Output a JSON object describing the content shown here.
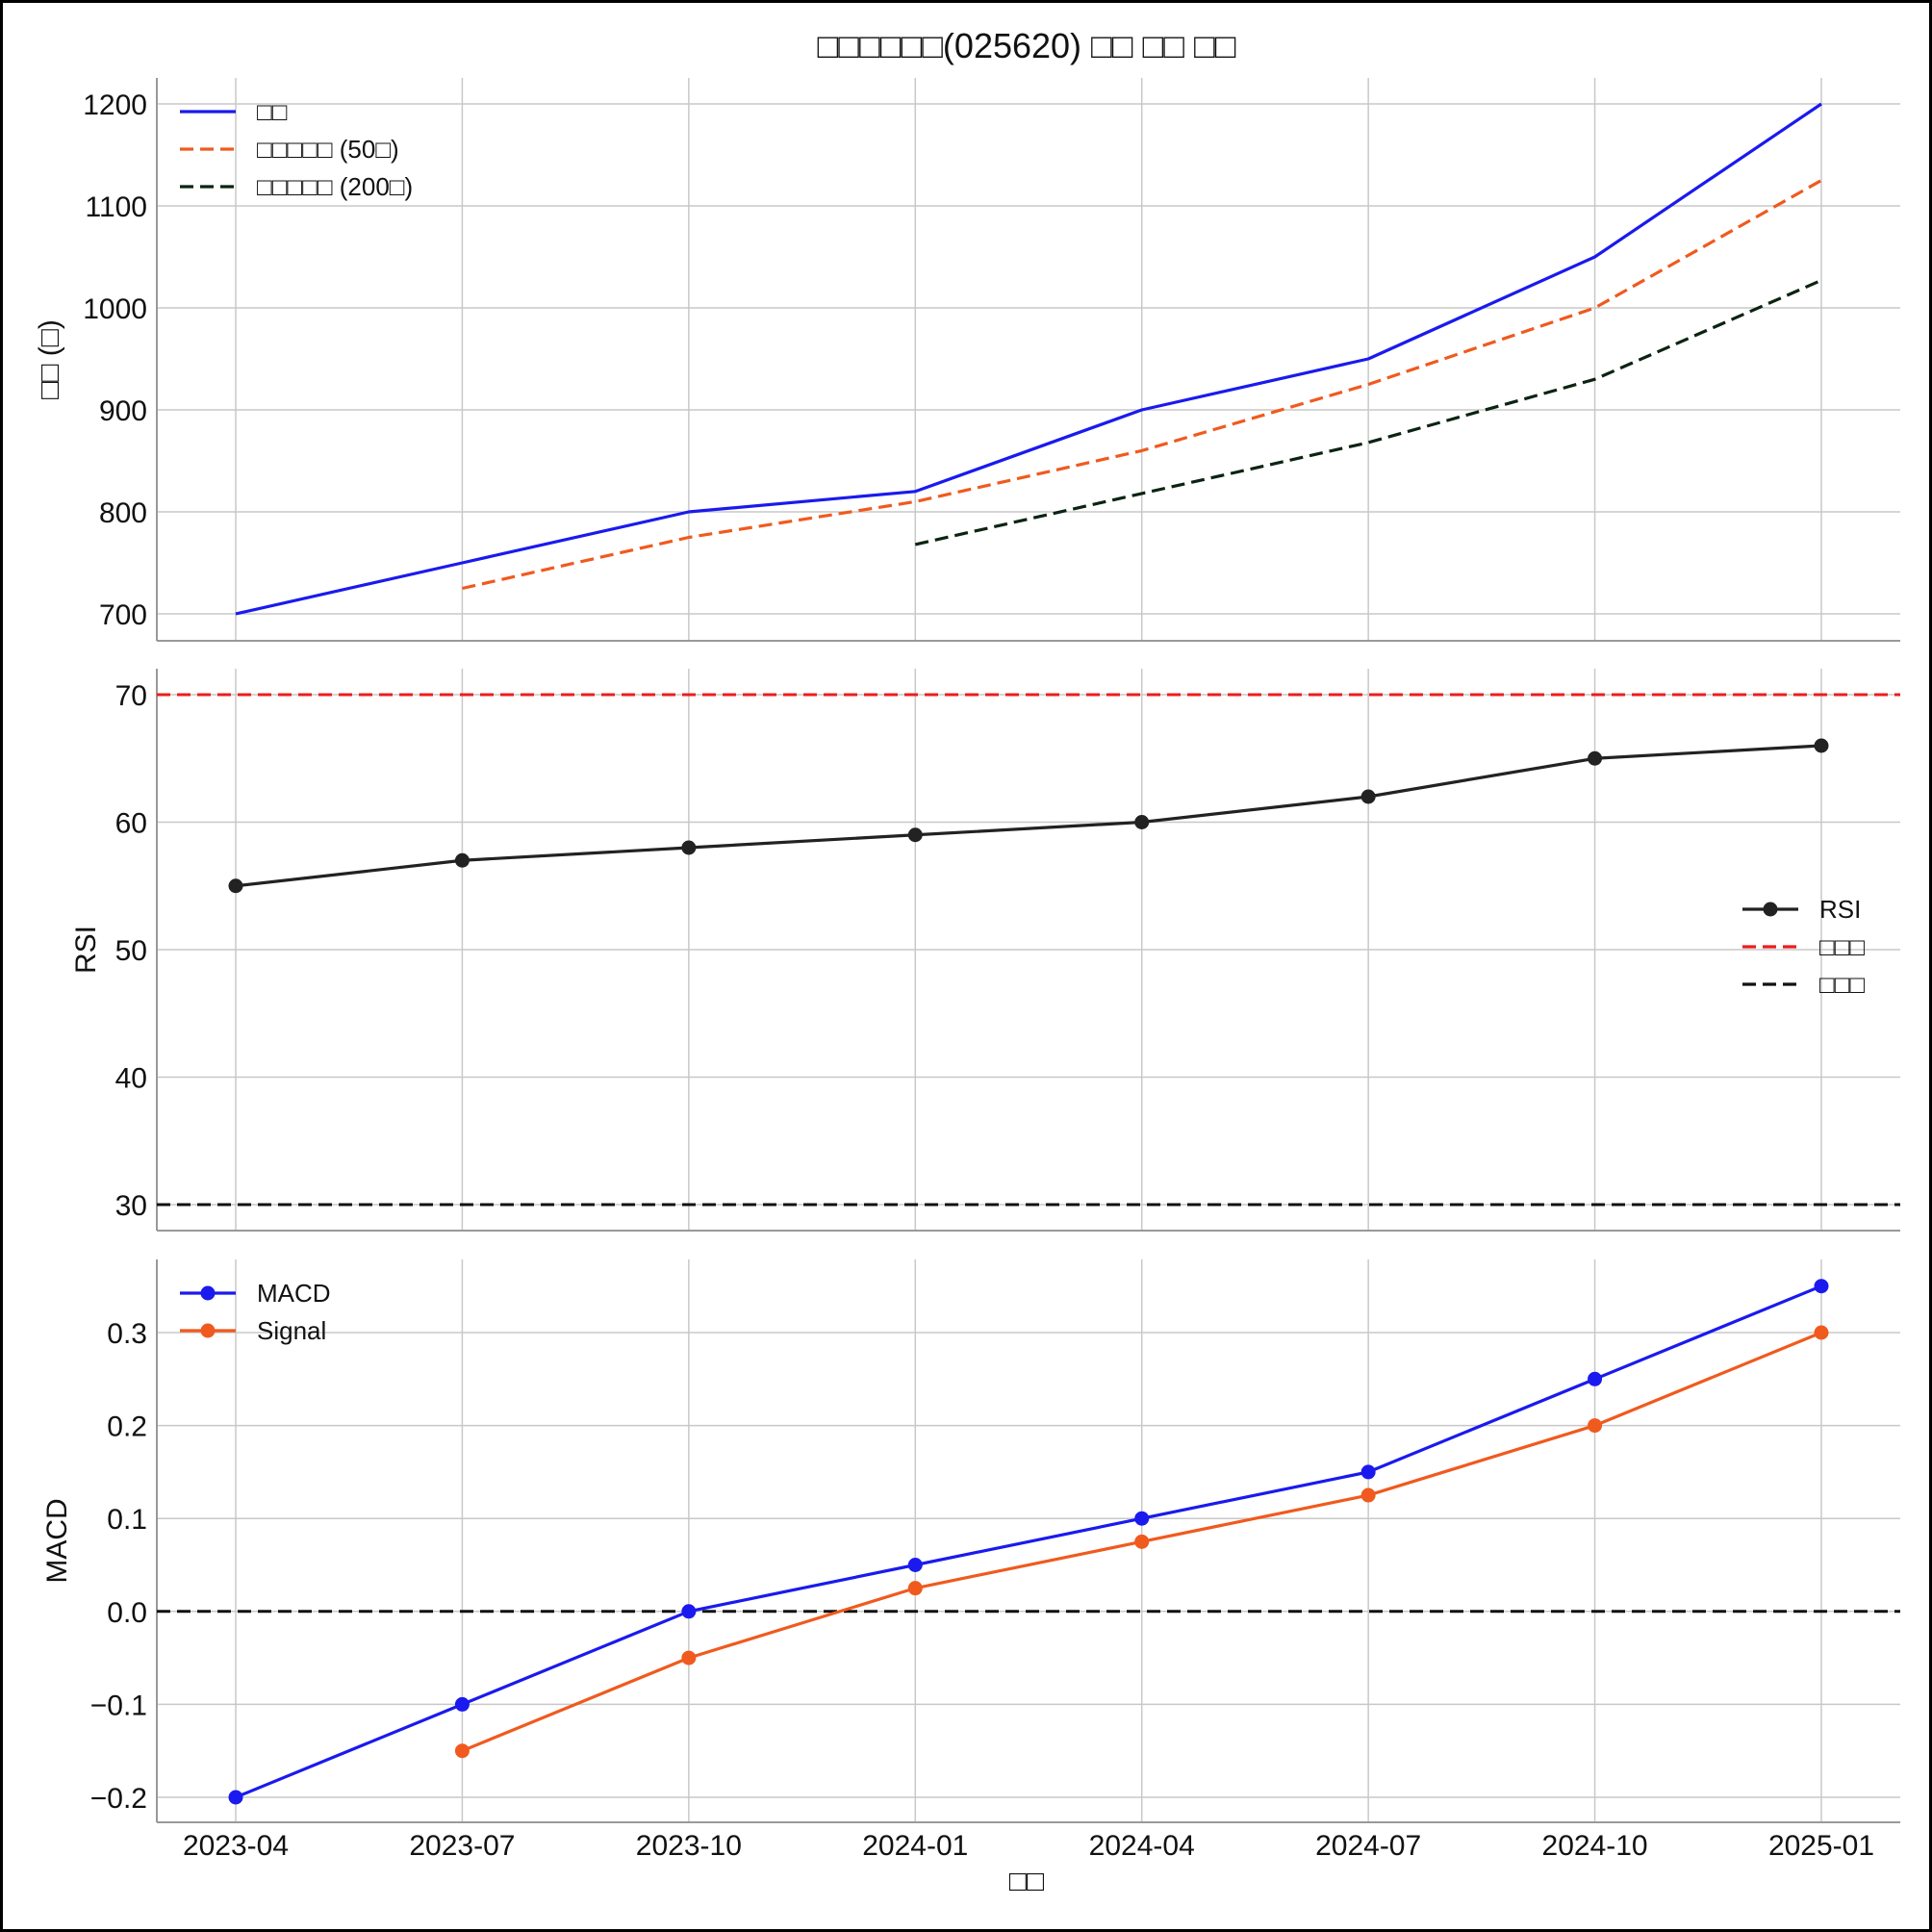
{
  "title": "□□□□□□(025620) □□ □□ □□",
  "x_dates": [
    "2023-04",
    "2023-07",
    "2023-10",
    "2024-01",
    "2024-04",
    "2024-07",
    "2024-10",
    "2025-01"
  ],
  "xlabel": "□□",
  "chart_data": [
    {
      "type": "line",
      "panel": "price",
      "ylabel": "□□ (□)",
      "ylim": [
        675,
        1225
      ],
      "yticks": [
        700,
        800,
        900,
        1000,
        1100,
        1200
      ],
      "grid": true,
      "legend_position": "top-left",
      "x": [
        "2023-04",
        "2023-07",
        "2023-10",
        "2024-01",
        "2024-04",
        "2024-07",
        "2024-10",
        "2025-01"
      ],
      "series": [
        {
          "name": "□□",
          "color": "#1a1aee",
          "style": "solid",
          "values": [
            700,
            750,
            800,
            820,
            900,
            950,
            1050,
            1200
          ]
        },
        {
          "name": "□□□□□ (50□)",
          "color": "#f05a1e",
          "style": "dashed",
          "values": [
            null,
            725,
            775,
            810,
            860,
            925,
            1000,
            1125
          ]
        },
        {
          "name": "□□□□□ (200□)",
          "color": "#0b2412",
          "style": "dashed",
          "values": [
            null,
            null,
            null,
            768,
            818,
            868,
            930,
            1027
          ]
        }
      ]
    },
    {
      "type": "line",
      "panel": "rsi",
      "ylabel": "RSI",
      "ylim": [
        28,
        72
      ],
      "yticks": [
        30,
        40,
        50,
        60,
        70
      ],
      "grid": true,
      "legend_position": "center-right",
      "x": [
        "2023-04",
        "2023-07",
        "2023-10",
        "2024-01",
        "2024-04",
        "2024-07",
        "2024-10",
        "2025-01"
      ],
      "series": [
        {
          "name": "RSI",
          "color": "#222222",
          "style": "solid-markers",
          "values": [
            55,
            57,
            58,
            59,
            60,
            62,
            65,
            66
          ]
        }
      ],
      "reference_lines": [
        {
          "name": "□□□",
          "value": 70,
          "color": "#ee1c1c",
          "style": "dashed"
        },
        {
          "name": "□□□",
          "value": 30,
          "color": "#111111",
          "style": "dashed"
        }
      ]
    },
    {
      "type": "line",
      "panel": "macd",
      "ylabel": "MACD",
      "ylim": [
        -0.225,
        0.375
      ],
      "yticks": [
        "-0.2",
        "-0.1",
        "0.0",
        "0.1",
        "0.2",
        "0.3"
      ],
      "grid": true,
      "legend_position": "top-left",
      "x": [
        "2023-04",
        "2023-07",
        "2023-10",
        "2024-01",
        "2024-04",
        "2024-07",
        "2024-10",
        "2025-01"
      ],
      "series": [
        {
          "name": "MACD",
          "color": "#1a1aee",
          "style": "solid-markers",
          "values": [
            -0.2,
            -0.1,
            0.0,
            0.05,
            0.1,
            0.15,
            0.25,
            0.35
          ]
        },
        {
          "name": "Signal",
          "color": "#f05a1e",
          "style": "solid-markers",
          "values": [
            null,
            -0.15,
            -0.05,
            0.025,
            0.075,
            0.125,
            0.2,
            0.3
          ]
        }
      ],
      "reference_lines": [
        {
          "value": 0,
          "color": "#111111",
          "style": "dashed"
        }
      ]
    }
  ]
}
